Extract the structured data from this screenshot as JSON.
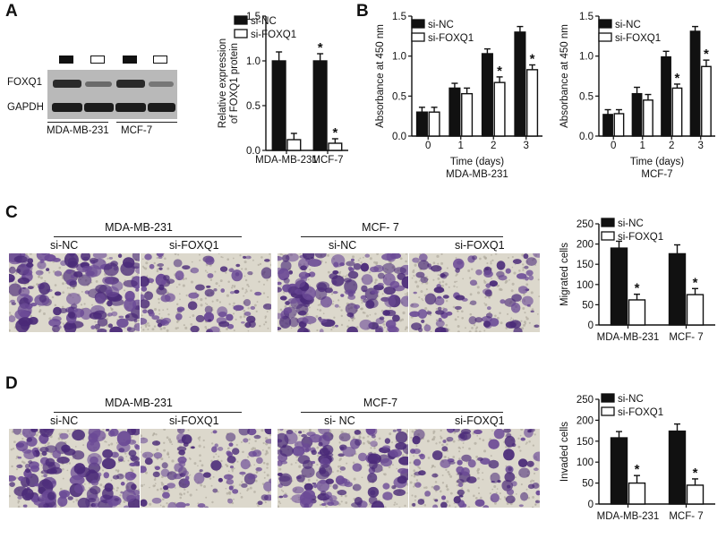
{
  "panels": {
    "a": "A",
    "b": "B",
    "c": "C",
    "d": "D"
  },
  "western_blot": {
    "rows": [
      "FOXQ1",
      "GAPDH"
    ],
    "groups": [
      "MDA-MB-231",
      "MCF-7"
    ],
    "lane_marks": [
      "filled",
      "open",
      "filled",
      "open"
    ]
  },
  "transwell": {
    "c": {
      "groups": [
        "MDA-MB-231",
        "MCF- 7"
      ],
      "conditions": [
        [
          "si-NC",
          "si-FOXQ1"
        ],
        [
          "si-NC",
          "si-FOXQ1"
        ]
      ]
    },
    "d": {
      "groups": [
        "MDA-MB-231",
        "MCF-7"
      ],
      "conditions": [
        [
          "si-NC",
          "si-FOXQ1"
        ],
        [
          "si- NC",
          "si-FOXQ1"
        ]
      ]
    }
  },
  "colors": {
    "si_nc": "#111111",
    "si_foxq1": "#ffffff",
    "stain_dense": "#4a2a78",
    "stain_light": "#6b4a96",
    "membrane": "#dcd8cc"
  },
  "chart_data": [
    {
      "id": "a",
      "type": "bar",
      "categories": [
        "MDA-MB-231",
        "MCF-7"
      ],
      "series": [
        {
          "name": "si-NC",
          "values": [
            1.0,
            1.0
          ],
          "errors": [
            0.1,
            0.08
          ]
        },
        {
          "name": "si-FOXQ1",
          "values": [
            0.12,
            0.08
          ],
          "errors": [
            0.07,
            0.05
          ]
        }
      ],
      "ylabel": "Relative expression\nof FOXQ1 protein",
      "ylim": [
        0,
        1.5
      ],
      "yticks": [
        "0.0",
        "0.5",
        "1.0",
        "1.5"
      ],
      "significance": [
        [
          false,
          true
        ],
        [
          false,
          true
        ]
      ],
      "star": "*",
      "legend": "top"
    },
    {
      "id": "b1",
      "type": "bar",
      "categories": [
        "0",
        "1",
        "2",
        "3"
      ],
      "series": [
        {
          "name": "si-NC",
          "values": [
            0.3,
            0.6,
            1.03,
            1.3
          ],
          "errors": [
            0.06,
            0.06,
            0.06,
            0.07
          ]
        },
        {
          "name": "si-FOXQ1",
          "values": [
            0.3,
            0.53,
            0.67,
            0.83
          ],
          "errors": [
            0.06,
            0.07,
            0.07,
            0.06
          ]
        }
      ],
      "xlabel": "Time (days)",
      "subtitle": "MDA-MB-231",
      "ylabel": "Absorbance at 450 nm",
      "ylim": [
        0,
        1.5
      ],
      "yticks": [
        "0.0",
        "0.5",
        "1.0",
        "1.5"
      ],
      "significance": [
        [
          false,
          false,
          false,
          false
        ],
        [
          false,
          false,
          true,
          true
        ]
      ],
      "star": "*",
      "legend": "top-left"
    },
    {
      "id": "b2",
      "type": "bar",
      "categories": [
        "0",
        "1",
        "2",
        "3"
      ],
      "series": [
        {
          "name": "si-NC",
          "values": [
            0.27,
            0.53,
            0.99,
            1.31
          ],
          "errors": [
            0.06,
            0.08,
            0.07,
            0.06
          ]
        },
        {
          "name": "si-FOXQ1",
          "values": [
            0.28,
            0.45,
            0.6,
            0.87
          ],
          "errors": [
            0.05,
            0.07,
            0.05,
            0.08
          ]
        }
      ],
      "xlabel": "Time (days)",
      "subtitle": "MCF-7",
      "ylabel": "Absorbance at 450 nm",
      "ylim": [
        0,
        1.5
      ],
      "yticks": [
        "0.0",
        "0.5",
        "1.0",
        "1.5"
      ],
      "significance": [
        [
          false,
          false,
          false,
          false
        ],
        [
          false,
          false,
          true,
          true
        ]
      ],
      "star": "*",
      "legend": "top-left"
    },
    {
      "id": "c",
      "type": "bar",
      "categories": [
        "MDA-MB-231",
        "MCF- 7"
      ],
      "series": [
        {
          "name": "si-NC",
          "values": [
            190,
            176
          ],
          "errors": [
            17,
            22
          ]
        },
        {
          "name": "si-FOXQ1",
          "values": [
            62,
            75
          ],
          "errors": [
            14,
            15
          ]
        }
      ],
      "ylabel": "Migrated cells",
      "ylim": [
        0,
        250
      ],
      "yticks": [
        "0",
        "50",
        "100",
        "150",
        "200",
        "250"
      ],
      "significance": [
        [
          false,
          false
        ],
        [
          true,
          true
        ]
      ],
      "star": "*",
      "legend": "top"
    },
    {
      "id": "d",
      "type": "bar",
      "categories": [
        "MDA-MB-231",
        "MCF- 7"
      ],
      "series": [
        {
          "name": "si-NC",
          "values": [
            158,
            174
          ],
          "errors": [
            15,
            17
          ]
        },
        {
          "name": "si-FOXQ1",
          "values": [
            50,
            45
          ],
          "errors": [
            18,
            15
          ]
        }
      ],
      "ylabel": "Invaded cells",
      "ylim": [
        0,
        250
      ],
      "yticks": [
        "0",
        "50",
        "100",
        "150",
        "200",
        "250"
      ],
      "significance": [
        [
          false,
          false
        ],
        [
          true,
          true
        ]
      ],
      "star": "*",
      "legend": "top"
    }
  ]
}
